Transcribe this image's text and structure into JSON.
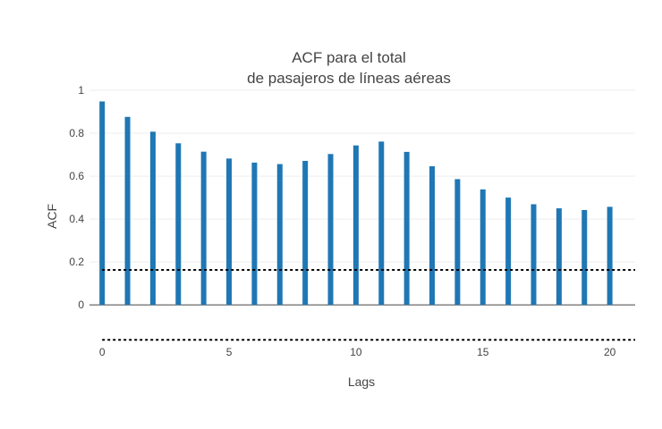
{
  "chart_data": {
    "type": "bar",
    "title_lines": [
      "ACF para el total",
      "de pasajeros de líneas aéreas"
    ],
    "xlabel": "Lags",
    "ylabel": "ACF",
    "x": [
      0,
      1,
      2,
      3,
      4,
      5,
      6,
      7,
      8,
      9,
      10,
      11,
      12,
      13,
      14,
      15,
      16,
      17,
      18,
      19,
      20
    ],
    "values": [
      0.948,
      0.876,
      0.807,
      0.753,
      0.714,
      0.682,
      0.663,
      0.656,
      0.671,
      0.703,
      0.743,
      0.761,
      0.713,
      0.646,
      0.586,
      0.538,
      0.5,
      0.469,
      0.45,
      0.442,
      0.457
    ],
    "confidence_bounds": [
      0.163,
      -0.163
    ],
    "xlim": [
      -0.5,
      21
    ],
    "ylim": [
      -0.22,
      1
    ],
    "xticks": [
      0,
      5,
      10,
      15,
      20
    ],
    "yticks": [
      0,
      0.2,
      0.4,
      0.6,
      0.8,
      1
    ],
    "grid": true,
    "bar_color": "#1f77b4"
  }
}
